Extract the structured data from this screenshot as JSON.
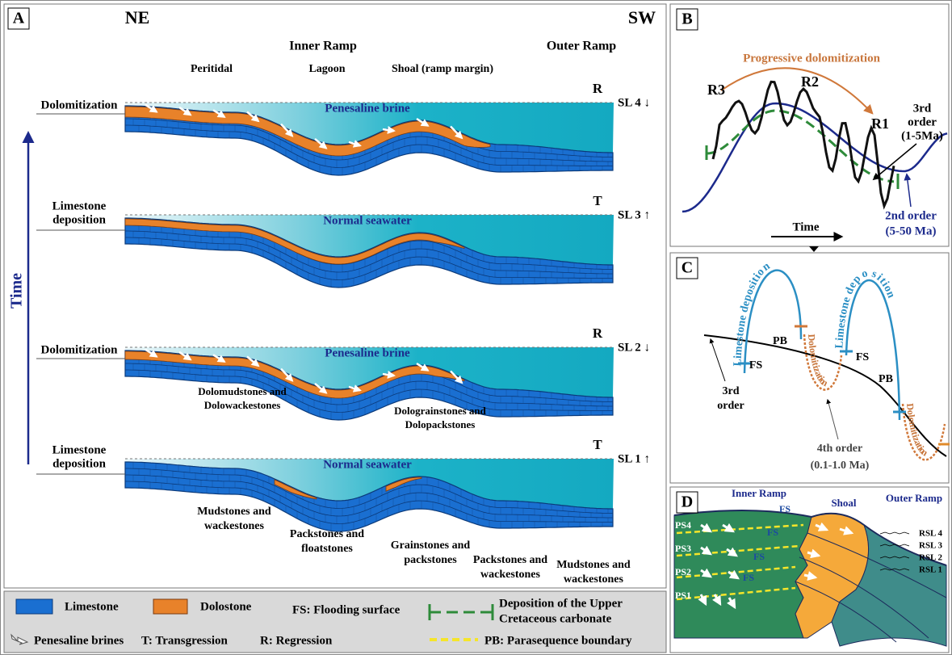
{
  "panel_a": {
    "label": "A",
    "left_direction": "NE",
    "right_direction": "SW",
    "inner_ramp": "Inner Ramp",
    "outer_ramp": "Outer Ramp",
    "peritidal": "Peritidal",
    "lagoon": "Lagoon",
    "shoal": "Shoal (ramp margin)",
    "time": "Time",
    "stages": [
      {
        "process": [
          "Dolomitization"
        ],
        "water": "Penesaline brine",
        "phase": "R",
        "sea_level": "SL 4 ↓"
      },
      {
        "process": [
          "Limestone",
          "deposition"
        ],
        "water": "Normal seawater",
        "phase": "T",
        "sea_level": "SL 3 ↑"
      },
      {
        "process": [
          "Dolomitization"
        ],
        "water": "Penesaline brine",
        "phase": "R",
        "sea_level": "SL 2 ↓"
      },
      {
        "process": [
          "Limestone",
          "deposition"
        ],
        "water": "Normal seawater",
        "phase": "T",
        "sea_level": "SL 1 ↑"
      }
    ],
    "dolomite_facies": [
      [
        "Dolomudstones and",
        "Dolowackestones"
      ],
      [
        "Dolograinstones and",
        "Dolopackstones"
      ]
    ],
    "facies": [
      [
        "Mudstones and",
        "wackestones"
      ],
      [
        "Packstones and",
        "floatstones"
      ],
      [
        "Grainstones and",
        "packstones"
      ],
      [
        "Packstones and",
        "wackestones"
      ],
      [
        "Mudstones and",
        "wackestones"
      ]
    ]
  },
  "legend": {
    "limestone": "Limestone",
    "dolostone": "Dolostone",
    "fs": "FS: Flooding surface",
    "upper_cretaceous": [
      "Deposition of the Upper",
      "Cretaceous carbonate"
    ],
    "brines": "Penesaline brines",
    "transgression": "T: Transgression",
    "regression": "R: Regression",
    "pb": "PB: Parasequence boundary"
  },
  "panel_b": {
    "label": "B",
    "arrow": "Progressive dolomitization",
    "r3": "R3",
    "r2": "R2",
    "r1": "R1",
    "third_order": [
      "3rd",
      "order",
      "(1-5Ma)"
    ],
    "time": "Time",
    "second_order": [
      "2nd order",
      "(5-50 Ma)"
    ]
  },
  "panel_c": {
    "label": "C",
    "limestone": [
      "Limestone deposition",
      "Limestone deposition"
    ],
    "dolomitization": [
      "Dolomitization",
      "Dolomitization"
    ],
    "pb": [
      "PB",
      "PB"
    ],
    "fs": [
      "FS",
      "FS"
    ],
    "third_order": [
      "3rd",
      "order"
    ],
    "fourth_order": [
      "4th order",
      "(0.1-1.0 Ma)"
    ]
  },
  "panel_d": {
    "label": "D",
    "inner_ramp": "Inner Ramp",
    "shoal": "Shoal",
    "outer_ramp": "Outer Ramp",
    "fs": [
      "FS",
      "FS",
      "FS",
      "FS"
    ],
    "rsl": [
      "RSL 4",
      "RSL 3",
      "RSL 2",
      "RSL 1"
    ],
    "ps": [
      "PS4",
      "PS3",
      "PS2",
      "PS1"
    ]
  }
}
